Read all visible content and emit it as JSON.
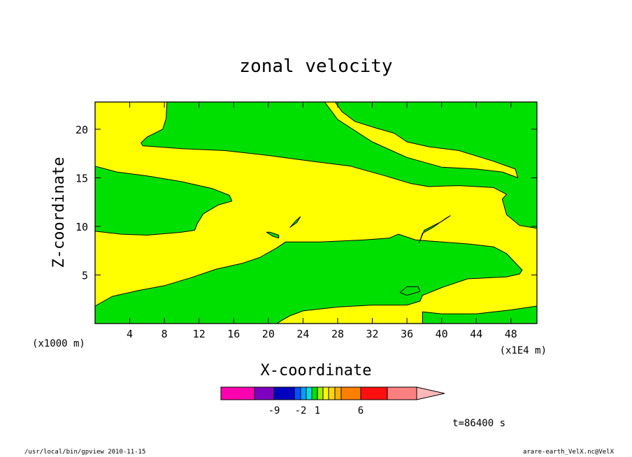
{
  "chart_data": {
    "type": "contour",
    "title": "zonal velocity",
    "xlabel": "X-coordinate",
    "ylabel": "Z-coordinate",
    "x_unit_note": "(x1E4 m)",
    "z_unit_note": "(x1000 m)",
    "xlim": [
      0,
      51
    ],
    "zlim": [
      0,
      22.8
    ],
    "x_ticks": [
      4,
      8,
      12,
      16,
      20,
      24,
      28,
      32,
      36,
      40,
      44,
      48
    ],
    "z_ticks": [
      5,
      10,
      15,
      20
    ],
    "fill_colors": {
      "positive": "#ffff00",
      "negative": "#00e000"
    },
    "green_regions": [
      [
        [
          8.3,
          22.8
        ],
        [
          8.2,
          21.1
        ],
        [
          7.8,
          20.0
        ],
        [
          6.0,
          19.2
        ],
        [
          5.3,
          18.6
        ],
        [
          5.5,
          18.3
        ],
        [
          10.0,
          18.0
        ],
        [
          15.0,
          17.8
        ],
        [
          20.0,
          17.3
        ],
        [
          25.0,
          16.7
        ],
        [
          29.5,
          16.2
        ],
        [
          33.5,
          15.2
        ],
        [
          36.5,
          14.4
        ],
        [
          38.5,
          14.1
        ],
        [
          42.0,
          14.2
        ],
        [
          46.0,
          14.0
        ],
        [
          47.5,
          13.3
        ],
        [
          47.0,
          12.8
        ],
        [
          47.5,
          11.2
        ],
        [
          49.0,
          10.1
        ],
        [
          51.0,
          9.8
        ],
        [
          51.0,
          22.8
        ],
        [
          27.7,
          22.8
        ],
        [
          28.5,
          21.8
        ],
        [
          30.0,
          20.8
        ],
        [
          32.5,
          20.1
        ],
        [
          34.5,
          19.6
        ],
        [
          36.0,
          18.7
        ],
        [
          38.5,
          18.2
        ],
        [
          42.0,
          17.8
        ],
        [
          46.0,
          16.7
        ],
        [
          48.5,
          15.9
        ],
        [
          48.8,
          15.0
        ],
        [
          47.0,
          15.6
        ],
        [
          44.0,
          15.9
        ],
        [
          40.0,
          16.1
        ],
        [
          36.0,
          17.1
        ],
        [
          32.0,
          18.7
        ],
        [
          28.0,
          21.0
        ],
        [
          26.5,
          22.8
        ]
      ],
      [
        [
          0,
          16.2
        ],
        [
          2.5,
          15.6
        ],
        [
          6.0,
          15.2
        ],
        [
          10.0,
          14.6
        ],
        [
          13.5,
          13.9
        ],
        [
          15.5,
          13.2
        ],
        [
          15.8,
          12.6
        ],
        [
          14.2,
          12.2
        ],
        [
          12.5,
          11.3
        ],
        [
          11.8,
          10.3
        ],
        [
          11.5,
          9.6
        ],
        [
          10.0,
          9.4
        ],
        [
          6.0,
          9.1
        ],
        [
          3.0,
          9.2
        ],
        [
          0,
          9.5
        ]
      ],
      [
        [
          0,
          1.8
        ],
        [
          2.0,
          2.8
        ],
        [
          5.0,
          3.4
        ],
        [
          8.0,
          3.9
        ],
        [
          11.0,
          4.7
        ],
        [
          14.0,
          5.6
        ],
        [
          17.0,
          6.2
        ],
        [
          19.0,
          6.8
        ],
        [
          21.0,
          7.8
        ],
        [
          22.0,
          8.4
        ],
        [
          26.0,
          8.4
        ],
        [
          31.0,
          8.6
        ],
        [
          34.0,
          8.8
        ],
        [
          35.0,
          9.2
        ],
        [
          37.0,
          8.6
        ],
        [
          40.0,
          8.4
        ],
        [
          43.0,
          8.2
        ],
        [
          46.0,
          7.9
        ],
        [
          47.5,
          7.2
        ],
        [
          49.3,
          5.5
        ],
        [
          49.0,
          5.1
        ],
        [
          47.5,
          4.8
        ],
        [
          43.0,
          4.6
        ],
        [
          40.0,
          3.7
        ],
        [
          37.8,
          2.9
        ],
        [
          37.5,
          2.3
        ],
        [
          36.0,
          1.9
        ],
        [
          32.0,
          1.9
        ],
        [
          28.0,
          1.7
        ],
        [
          24.0,
          1.3
        ],
        [
          22.5,
          0.8
        ],
        [
          21.5,
          0.3
        ],
        [
          21.0,
          0
        ],
        [
          0,
          0
        ]
      ],
      [
        [
          37.8,
          0
        ],
        [
          37.8,
          1.2
        ],
        [
          40.0,
          1.0
        ],
        [
          44.0,
          1.0
        ],
        [
          48.0,
          1.4
        ],
        [
          51.0,
          1.8
        ],
        [
          51.0,
          0
        ]
      ],
      [
        [
          35.2,
          3.2
        ],
        [
          36.0,
          3.8
        ],
        [
          37.3,
          3.8
        ],
        [
          37.5,
          3.3
        ],
        [
          36.0,
          2.9
        ]
      ],
      [
        [
          37.4,
          8.3
        ],
        [
          38.0,
          9.6
        ],
        [
          40.0,
          10.5
        ],
        [
          41.0,
          11.1
        ],
        [
          40.6,
          10.9
        ],
        [
          39.0,
          9.9
        ],
        [
          37.8,
          9.3
        ]
      ],
      [
        [
          19.8,
          9.4
        ],
        [
          20.5,
          9.0
        ],
        [
          21.2,
          8.8
        ],
        [
          21.2,
          9.1
        ],
        [
          20.2,
          9.4
        ]
      ],
      [
        [
          22.5,
          9.9
        ],
        [
          23.2,
          10.6
        ],
        [
          23.7,
          11.0
        ],
        [
          23.3,
          10.4
        ]
      ]
    ],
    "colorbar": {
      "colors": [
        "#ff00b0",
        "#8000c0",
        "#0000c0",
        "#0050ff",
        "#00a0ff",
        "#00e0e0",
        "#00e000",
        "#a0f000",
        "#ffff00",
        "#ffd800",
        "#ffb000",
        "#ff8000",
        "#ff1010",
        "#ff8080",
        "#ffb8b8"
      ],
      "tick_labels": [
        "-9",
        "-2",
        "1",
        "6"
      ]
    },
    "time_label": "t=86400 s"
  },
  "footer": {
    "left": "/usr/local/bin/gpview  2010-11-15",
    "right": "arare-earth_VelX.nc@VelX"
  }
}
